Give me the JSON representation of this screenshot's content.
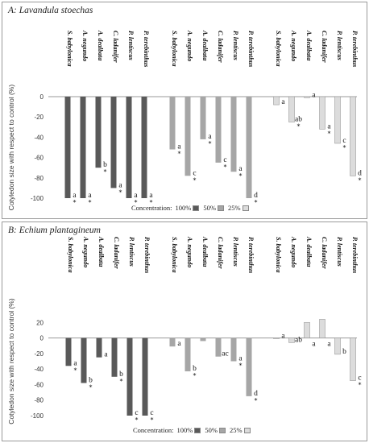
{
  "panels": [
    {
      "letter": "A:",
      "species": "Lavandula stoechas",
      "legend": {
        "label": "Concentration:",
        "items": [
          {
            "name": "100%",
            "color": "#595959"
          },
          {
            "name": "50%",
            "color": "#a6a6a6"
          },
          {
            "name": "25%",
            "color": "#dcdcdc"
          }
        ]
      }
    },
    {
      "letter": "B:",
      "species": "Echium plantagineum",
      "legend": {
        "label": "Concentration:",
        "items": [
          {
            "name": "100%",
            "color": "#595959"
          },
          {
            "name": "50%",
            "color": "#a6a6a6"
          },
          {
            "name": "25%",
            "color": "#dcdcdc"
          }
        ]
      }
    }
  ],
  "chart_data": [
    {
      "type": "bar",
      "title": "A: Lavandula stoechas",
      "ylabel": "Cotyledon size with respect to control (%)",
      "ylim": [
        -100,
        0
      ],
      "yticks": [
        0,
        -20,
        -40,
        -60,
        -80,
        -100
      ],
      "grid": false,
      "legend_position": "bottom",
      "categories": [
        "S. babylonica",
        "A. negundo",
        "A. dealbata",
        "C. ladanifer",
        "P. lentiscus",
        "P. terebinthus"
      ],
      "series": [
        {
          "name": "100%",
          "color": "#595959",
          "values": [
            -100,
            -100,
            -70,
            -90,
            -100,
            -100
          ],
          "labels": [
            "a",
            "a",
            "b",
            "a",
            "a",
            "a"
          ],
          "significant": [
            true,
            true,
            true,
            true,
            true,
            true
          ]
        },
        {
          "name": "50%",
          "color": "#a6a6a6",
          "values": [
            -52,
            -78,
            -42,
            -65,
            -74,
            -100
          ],
          "labels": [
            "a",
            "c",
            "a",
            "c",
            "a",
            "d"
          ],
          "significant": [
            true,
            true,
            true,
            true,
            true,
            true
          ]
        },
        {
          "name": "25%",
          "color": "#dcdcdc",
          "values": [
            -8,
            -25,
            -1,
            -32,
            -46,
            -78
          ],
          "labels": [
            "a",
            "ab",
            "a",
            "a",
            "c",
            "d"
          ],
          "significant": [
            false,
            true,
            false,
            true,
            true,
            true
          ]
        }
      ]
    },
    {
      "type": "bar",
      "title": "B: Echium plantagineum",
      "ylabel": "Cotyledon size with respect to control (%)",
      "ylim": [
        -100,
        40
      ],
      "yticks": [
        20,
        0,
        -20,
        -40,
        -60,
        -80,
        -100
      ],
      "grid": false,
      "legend_position": "bottom",
      "categories": [
        "S. babylonica",
        "A. negundo",
        "A. dealbata",
        "C. ladanifer",
        "P. lentiscus",
        "P. terebinthus"
      ],
      "series": [
        {
          "name": "100%",
          "color": "#595959",
          "values": [
            -36,
            -58,
            -25,
            -50,
            -100,
            -100
          ],
          "labels": [
            "a",
            "b",
            "a",
            "b",
            "c",
            "c"
          ],
          "significant": [
            true,
            true,
            false,
            true,
            true,
            true
          ]
        },
        {
          "name": "50%",
          "color": "#a6a6a6",
          "values": [
            -11,
            -43,
            -4,
            -24,
            -30,
            -75
          ],
          "labels": [
            "a",
            "b",
            "",
            "ac",
            "a",
            "d"
          ],
          "significant": [
            false,
            true,
            false,
            false,
            true,
            true
          ]
        },
        {
          "name": "25%",
          "color": "#dcdcdc",
          "values": [
            -1,
            -6,
            20,
            24,
            -21,
            -55
          ],
          "labels": [
            "a",
            "ab",
            "a",
            "a",
            "b",
            "c"
          ],
          "significant": [
            false,
            false,
            false,
            false,
            false,
            true
          ]
        }
      ]
    }
  ]
}
